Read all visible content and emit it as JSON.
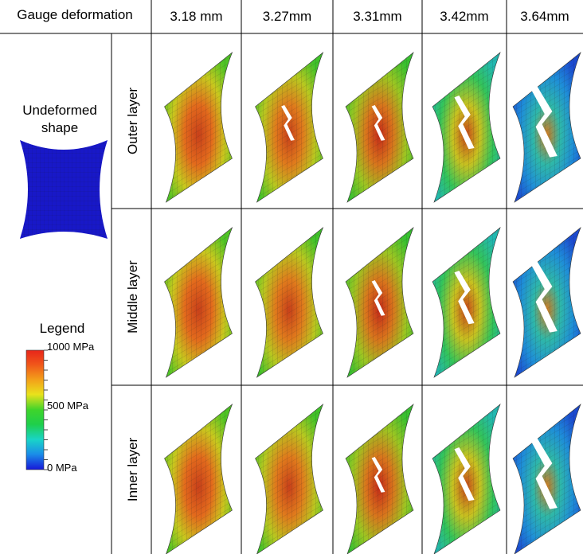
{
  "header": {
    "title": "Gauge deformation",
    "columns": [
      "3.18 mm",
      "3.27mm",
      "3.31mm",
      "3.42mm",
      "3.64mm"
    ]
  },
  "undeformed": "Undeformed shape",
  "rows": [
    "Outer layer",
    "Middle layer",
    "Inner layer"
  ],
  "legend": {
    "title": "Legend",
    "labels": [
      "1000 MPa",
      "500 MPa",
      "0 MPa"
    ]
  }
}
